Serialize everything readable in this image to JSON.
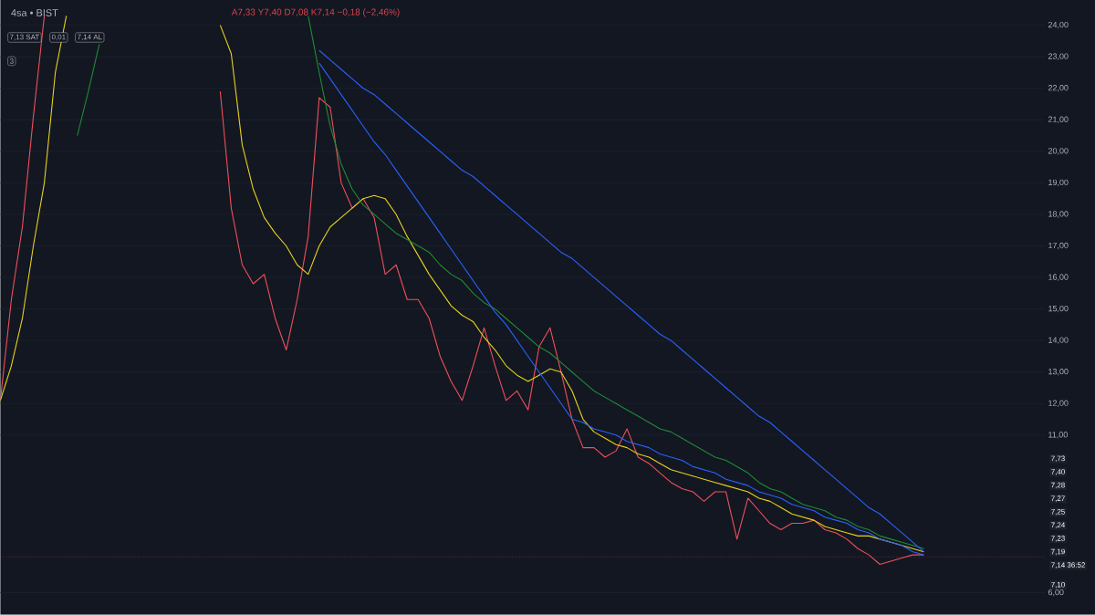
{
  "chart_data": {
    "type": "line",
    "title": "4sa • BIST",
    "subtitle": "A7,33 Y7,40 D7,08 K7,14 −0,18 (−2,46%)",
    "categories": [
      null,
      null,
      null,
      null,
      null,
      null,
      null,
      null,
      null,
      null,
      null,
      null,
      null,
      null,
      null,
      null,
      null,
      null,
      null,
      null,
      null,
      null,
      null,
      null,
      null,
      null,
      null,
      null,
      null,
      null,
      null,
      null,
      null,
      null,
      null,
      null,
      null,
      null,
      null,
      null,
      null,
      null,
      null,
      null,
      null,
      null,
      null,
      null,
      null,
      null,
      null,
      null,
      null,
      null,
      null,
      null,
      null,
      null,
      null,
      null,
      null,
      null,
      null,
      null,
      null,
      null,
      null,
      null,
      null,
      null,
      null,
      null,
      null,
      null,
      null,
      null,
      null,
      null,
      null,
      null,
      null,
      null,
      null,
      null,
      null,
      null,
      null,
      null,
      null,
      null,
      null,
      null,
      null,
      null,
      null,
      null
    ],
    "series": [
      {
        "color": "#f0505a",
        "values": [
          null,
          null,
          null,
          null,
          null,
          null,
          null,
          null,
          null,
          null,
          null,
          null,
          null,
          null,
          null,
          null,
          null,
          null,
          null,
          null,
          21.9,
          18.2,
          16.4,
          15.8,
          16.1,
          14.7,
          13.7,
          15.3,
          17.3,
          21.7,
          21.4,
          19.0,
          18.2,
          18.5,
          17.9,
          16.1,
          16.4,
          15.3,
          15.3,
          14.7,
          13.5,
          12.7,
          12.1,
          13.2,
          14.4,
          13.2,
          12.1,
          12.4,
          11.8,
          13.8,
          14.4,
          13.0,
          11.5,
          10.6,
          10.6,
          10.3,
          10.5,
          11.2,
          10.3,
          10.1,
          9.8,
          9.5,
          9.3,
          9.2,
          8.9,
          9.2,
          9.2,
          7.7,
          9.0,
          8.6,
          8.2,
          8.0,
          8.2,
          8.2,
          8.3,
          8.0,
          7.9,
          7.7,
          7.4,
          7.2,
          6.9,
          7.0,
          7.1,
          7.2,
          7.2,
          null,
          null,
          null,
          null,
          null,
          null,
          null,
          null,
          null,
          null,
          null
        ]
      },
      {
        "color": "#e6d21e",
        "values": [
          null,
          null,
          null,
          null,
          null,
          null,
          null,
          null,
          null,
          null,
          null,
          null,
          null,
          null,
          null,
          null,
          null,
          null,
          null,
          null,
          24.0,
          23.1,
          20.2,
          18.8,
          17.9,
          17.4,
          17.0,
          16.4,
          16.1,
          17.0,
          17.6,
          17.9,
          18.2,
          18.5,
          18.6,
          18.5,
          18.0,
          17.3,
          16.7,
          16.1,
          15.6,
          15.1,
          14.8,
          14.6,
          14.1,
          13.7,
          13.2,
          12.9,
          12.7,
          12.9,
          13.1,
          13.0,
          12.4,
          11.5,
          11.1,
          10.9,
          10.7,
          10.6,
          10.4,
          10.3,
          10.1,
          9.9,
          9.8,
          9.7,
          9.6,
          9.5,
          9.4,
          9.3,
          9.2,
          9.0,
          8.9,
          8.7,
          8.5,
          8.4,
          8.3,
          8.1,
          8.0,
          7.9,
          7.8,
          7.8,
          7.7,
          7.6,
          7.5,
          7.4,
          7.3,
          null,
          null,
          null,
          null,
          null,
          null,
          null,
          null,
          null,
          null,
          null
        ]
      },
      {
        "color": "#1e8c32",
        "values": [
          null,
          null,
          null,
          null,
          null,
          null,
          null,
          null,
          null,
          null,
          null,
          null,
          null,
          null,
          null,
          null,
          null,
          null,
          null,
          null,
          null,
          null,
          null,
          null,
          null,
          null,
          null,
          null,
          24.3,
          22.5,
          20.8,
          19.6,
          18.8,
          18.3,
          18.0,
          17.7,
          17.4,
          17.2,
          17.0,
          16.8,
          16.4,
          16.1,
          15.9,
          15.5,
          15.2,
          15.0,
          14.7,
          14.4,
          14.1,
          13.8,
          13.6,
          13.3,
          13.0,
          12.7,
          12.4,
          12.2,
          12.0,
          11.8,
          11.6,
          11.4,
          11.2,
          11.1,
          10.9,
          10.7,
          10.5,
          10.3,
          10.2,
          10.0,
          9.8,
          9.5,
          9.3,
          9.2,
          9.0,
          8.8,
          8.7,
          8.6,
          8.4,
          8.3,
          8.1,
          8.0,
          7.8,
          7.7,
          7.6,
          7.5,
          7.4,
          null,
          null,
          null,
          null,
          null,
          null,
          null,
          null,
          null,
          null,
          null
        ]
      },
      {
        "color": "#2962ff",
        "values": [
          null,
          null,
          null,
          null,
          null,
          null,
          null,
          null,
          null,
          null,
          null,
          null,
          null,
          null,
          null,
          null,
          null,
          null,
          null,
          null,
          null,
          null,
          null,
          null,
          null,
          null,
          null,
          null,
          null,
          23.2,
          22.9,
          22.6,
          22.3,
          22.0,
          21.8,
          21.5,
          21.2,
          20.9,
          20.6,
          20.3,
          20.0,
          19.7,
          19.4,
          19.2,
          18.9,
          18.6,
          18.3,
          18.0,
          17.7,
          17.4,
          17.1,
          16.8,
          16.6,
          16.3,
          16.0,
          15.7,
          15.4,
          15.1,
          14.8,
          14.5,
          14.2,
          14.0,
          13.7,
          13.4,
          13.1,
          12.8,
          12.5,
          12.2,
          11.9,
          11.6,
          11.4,
          11.1,
          10.8,
          10.5,
          10.2,
          9.9,
          9.6,
          9.3,
          9.0,
          8.7,
          8.5,
          8.2,
          7.9,
          7.6,
          7.3,
          null,
          null,
          null,
          null,
          null,
          null,
          null,
          null,
          null,
          null,
          null
        ]
      },
      {
        "color": "#2962ff",
        "values": [
          null,
          null,
          null,
          null,
          null,
          null,
          null,
          null,
          null,
          null,
          null,
          null,
          null,
          null,
          null,
          null,
          null,
          null,
          null,
          null,
          null,
          null,
          null,
          null,
          null,
          null,
          null,
          null,
          null,
          22.8,
          22.3,
          21.8,
          21.3,
          20.8,
          20.3,
          19.9,
          19.4,
          18.9,
          18.4,
          17.9,
          17.4,
          16.9,
          16.4,
          15.9,
          15.4,
          14.9,
          14.5,
          14.0,
          13.5,
          13.0,
          12.5,
          12.0,
          11.5,
          11.4,
          11.2,
          11.1,
          11.0,
          10.8,
          10.7,
          10.6,
          10.4,
          10.3,
          10.2,
          10.0,
          9.9,
          9.8,
          9.6,
          9.5,
          9.4,
          9.2,
          9.1,
          9.0,
          8.8,
          8.7,
          8.6,
          8.4,
          8.3,
          8.2,
          8.0,
          7.9,
          7.7,
          7.6,
          7.5,
          7.3,
          7.2,
          null,
          null,
          null,
          null,
          null,
          null,
          null,
          null,
          null,
          null,
          null
        ]
      },
      {
        "color": "#f0505a",
        "values": [
          12.1,
          15.3,
          17.6,
          21.1,
          24.3,
          null,
          null,
          null,
          null,
          null,
          null,
          null,
          null,
          null,
          null,
          null,
          null,
          null,
          null,
          null,
          null,
          null,
          null,
          null,
          null,
          null,
          null,
          null,
          null,
          null,
          null,
          null,
          null,
          null,
          null,
          null,
          null,
          null,
          null,
          null,
          null,
          null,
          null,
          null,
          null,
          null,
          null,
          null,
          null,
          null,
          null,
          null,
          null,
          null,
          null,
          null,
          null,
          null,
          null,
          null,
          null,
          null,
          null,
          null,
          null,
          null,
          null,
          null,
          null,
          null,
          null,
          null,
          null,
          null,
          null,
          null,
          null,
          null,
          null,
          null,
          null,
          null,
          null,
          null,
          null,
          null,
          null,
          null,
          null,
          null,
          null,
          null,
          null,
          null,
          null,
          null
        ]
      },
      {
        "color": "#e6d21e",
        "values": [
          12.1,
          13.2,
          14.7,
          17.0,
          19.0,
          22.5,
          24.3,
          null,
          null,
          null,
          null,
          null,
          null,
          null,
          null,
          null,
          null,
          null,
          null,
          null,
          null,
          null,
          null,
          null,
          null,
          null,
          null,
          null,
          null,
          null,
          null,
          null,
          null,
          null,
          null,
          null,
          null,
          null,
          null,
          null,
          null,
          null,
          null,
          null,
          null,
          null,
          null,
          null,
          null,
          null,
          null,
          null,
          null,
          null,
          null,
          null,
          null,
          null,
          null,
          null,
          null,
          null,
          null,
          null,
          null,
          null,
          null,
          null,
          null,
          null,
          null,
          null,
          null,
          null,
          null,
          null,
          null,
          null,
          null,
          null,
          null,
          null,
          null,
          null,
          null,
          null,
          null,
          null,
          null,
          null,
          null,
          null,
          null,
          null,
          null,
          null
        ]
      },
      {
        "color": "#1e8c32",
        "values": [
          null,
          null,
          null,
          null,
          null,
          null,
          null,
          20.5,
          21.9,
          23.4,
          null,
          null,
          null,
          null,
          null,
          null,
          null,
          null,
          null,
          null,
          null,
          null,
          null,
          null,
          null,
          null,
          null,
          null,
          null,
          null,
          null,
          null,
          null,
          null,
          null,
          null,
          null,
          null,
          null,
          null,
          null,
          null,
          null,
          null,
          null,
          null,
          null,
          null,
          null,
          null,
          null,
          null,
          null,
          null,
          null,
          null,
          null,
          null,
          null,
          null,
          null,
          null,
          null,
          null,
          null,
          null,
          null,
          null,
          null,
          null,
          null,
          null,
          null,
          null,
          null,
          null,
          null,
          null,
          null,
          null,
          null,
          null,
          null,
          null,
          null,
          null,
          null,
          null,
          null,
          null,
          null,
          null,
          null,
          null,
          null,
          null
        ]
      }
    ],
    "ylim": [
      5.3,
      24.8
    ],
    "yticks": [
      {
        "value": 6,
        "label": "6,00"
      },
      {
        "value": 11,
        "label": "11,00"
      },
      {
        "value": 12,
        "label": "12,00"
      },
      {
        "value": 13,
        "label": "13,00"
      },
      {
        "value": 14,
        "label": "14,00"
      },
      {
        "value": 15,
        "label": "15,00"
      },
      {
        "value": 16,
        "label": "16,00"
      },
      {
        "value": 17,
        "label": "17,00"
      },
      {
        "value": 18,
        "label": "18,00"
      },
      {
        "value": 19,
        "label": "19,00"
      },
      {
        "value": 20,
        "label": "20,00"
      },
      {
        "value": 21,
        "label": "21,00"
      },
      {
        "value": 22,
        "label": "22,00"
      },
      {
        "value": 23,
        "label": "23,00"
      },
      {
        "value": 24,
        "label": "24,00"
      }
    ],
    "grid": "y",
    "marker": "none",
    "line_style": "solid",
    "tick_labels": "y",
    "ref_lines": [
      {
        "axis": "y",
        "value": 7.14,
        "color": "#f23645",
        "line_style": "dotted"
      }
    ],
    "annotations": [
      "7,13 SAT",
      "0,01",
      "7,14 AL",
      "3",
      "7,73",
      "7,40",
      "7,28",
      "7,27",
      "7,25",
      "7,24",
      "7,23",
      "7,19",
      "7,14 36:52",
      "7,10"
    ]
  }
}
